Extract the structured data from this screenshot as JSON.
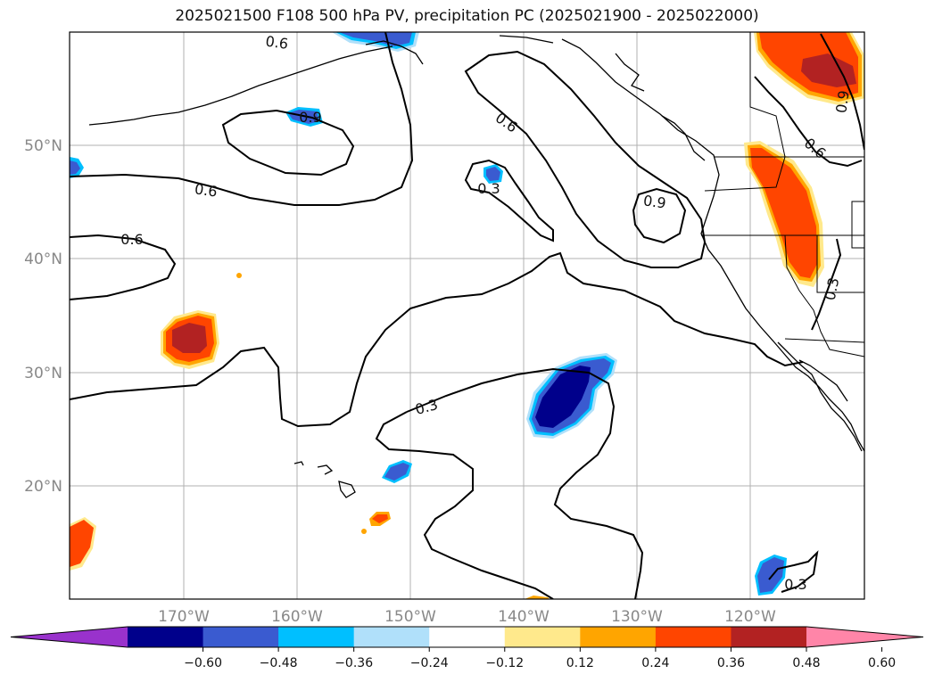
{
  "title": "2025021500 F108 500 hPa PV, precipitation PC (2025021900 - 2025022000)",
  "lat_labels": [
    "50°N",
    "40°N",
    "30°N",
    "20°N"
  ],
  "lon_labels": [
    "170°W",
    "160°W",
    "150°W",
    "140°W",
    "130°W",
    "120°W"
  ],
  "contour_labels": [
    "0.6",
    "0.9",
    "0.6",
    "0.6",
    "0.3",
    "0.9",
    "0.3",
    "0.3",
    "0.6",
    "0.9",
    "0.3",
    "0.3"
  ],
  "colorbar": {
    "ticks": [
      "−0.60",
      "−0.48",
      "−0.36",
      "−0.24",
      "−0.12",
      "0.12",
      "0.24",
      "0.36",
      "0.48",
      "0.60"
    ],
    "colors": [
      "#9932cc",
      "#00008b",
      "#3a5bd0",
      "#00bfff",
      "#b0e0fa",
      "#ffffff",
      "#ffe98c",
      "#ffa500",
      "#ff4500",
      "#b22222",
      "#ff85a8"
    ]
  },
  "colors": {
    "pos_1": "#ffe98c",
    "pos_2": "#ffa500",
    "pos_3": "#ff4500",
    "pos_4": "#b22222",
    "neg_1": "#b0e0fa",
    "neg_2": "#00bfff",
    "neg_3": "#3a5bd0",
    "neg_4": "#00008b"
  }
}
